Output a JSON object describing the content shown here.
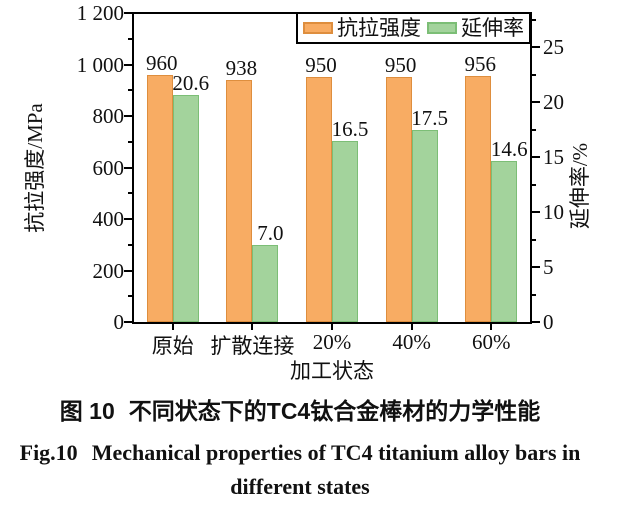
{
  "chart_data": {
    "type": "bar",
    "dual_axis": true,
    "title": "",
    "categories": [
      "原始",
      "扩散连接",
      "20%",
      "40%",
      "60%"
    ],
    "series": [
      {
        "name": "抗拉强度",
        "axis": "left",
        "values": [
          960,
          938,
          950,
          950,
          956
        ],
        "labels": [
          "960",
          "938",
          "950",
          "950",
          "956"
        ],
        "fill": "#F8AC63",
        "border": "#DE8E3E"
      },
      {
        "name": "延伸率",
        "axis": "right",
        "values": [
          20.6,
          7.0,
          16.5,
          17.5,
          14.6
        ],
        "labels": [
          "20.6",
          "7.0",
          "16.5",
          "17.5",
          "14.6"
        ],
        "fill": "#A3D39C",
        "border": "#7CBE76"
      }
    ],
    "left_axis": {
      "title": "抗拉强度/MPa",
      "min": 0,
      "max": 1200,
      "major_step": 200,
      "minor_step": 100,
      "tick_labels": [
        "0",
        "200",
        "400",
        "600",
        "800",
        "1 000",
        "1 200"
      ]
    },
    "right_axis": {
      "title": "延伸率/%",
      "min": 0,
      "max": 28.1,
      "major_step": 5,
      "minor_step": 2.5,
      "tick_labels": [
        "0",
        "5",
        "10",
        "15",
        "20",
        "25"
      ]
    },
    "x_axis": {
      "title": "加工状态"
    },
    "legend": {
      "position": "top-right",
      "entries": [
        "抗拉强度",
        "延伸率"
      ]
    },
    "grid": false
  },
  "caption": {
    "zh_prefix": "图 10",
    "zh_text": "不同状态下的TC4钛合金棒材的力学性能",
    "en_prefix": "Fig.10",
    "en_text_line1": "Mechanical properties of TC4 titanium alloy bars in",
    "en_text_line2": "different states"
  }
}
